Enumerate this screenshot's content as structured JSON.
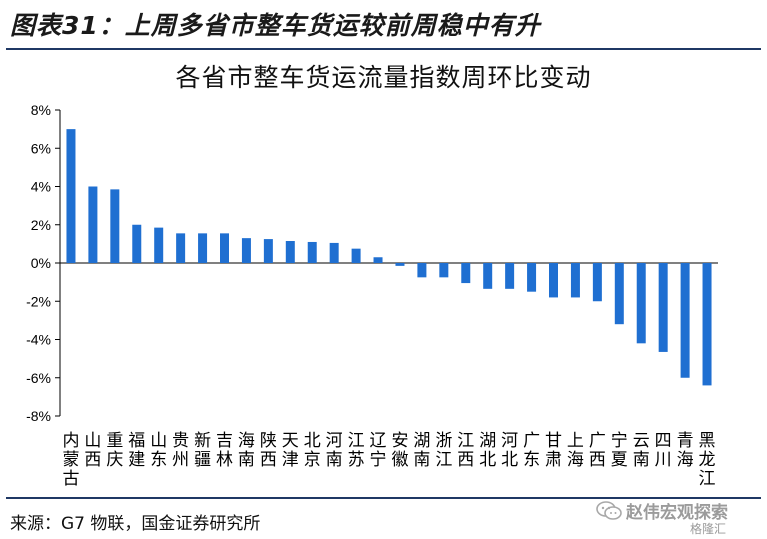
{
  "figure_title": "图表31：上周多省市整车货运较前周稳中有升",
  "source": "来源：G7 物联，国金证券研究所",
  "watermark": {
    "text": "赵伟宏观探索",
    "sub": "格隆汇"
  },
  "colors": {
    "bar": "#1f6fd1",
    "axis": "#000000",
    "rule": "#1f3864"
  },
  "icons": [
    "wechat-icon"
  ],
  "chart_data": {
    "type": "bar",
    "title": "各省市整车货运流量指数周环比变动",
    "xlabel": "",
    "ylabel": "",
    "ylim": [
      -8,
      8
    ],
    "yticks": [
      "8%",
      "6%",
      "4%",
      "2%",
      "0%",
      "-2%",
      "-4%",
      "-6%",
      "-8%"
    ],
    "ytick_values": [
      8,
      6,
      4,
      2,
      0,
      -2,
      -4,
      -6,
      -8
    ],
    "grid": false,
    "legend": "none",
    "categories": [
      "内蒙古",
      "山西",
      "重庆",
      "福建",
      "山东",
      "贵州",
      "新疆",
      "吉林",
      "海南",
      "陕西",
      "天津",
      "北京",
      "河南",
      "江苏",
      "辽宁",
      "安徽",
      "湖南",
      "浙江",
      "江西",
      "湖北",
      "河北",
      "广东",
      "甘肃",
      "上海",
      "广西",
      "宁夏",
      "云南",
      "四川",
      "青海",
      "黑龙江"
    ],
    "values": [
      7.0,
      4.0,
      3.85,
      2.0,
      1.85,
      1.55,
      1.55,
      1.55,
      1.3,
      1.25,
      1.15,
      1.1,
      1.05,
      0.75,
      0.3,
      -0.15,
      -0.75,
      -0.75,
      -1.05,
      -1.35,
      -1.35,
      -1.5,
      -1.8,
      -1.8,
      -2.0,
      -3.2,
      -4.2,
      -4.65,
      -6.0,
      -6.4
    ],
    "unit": "%"
  }
}
